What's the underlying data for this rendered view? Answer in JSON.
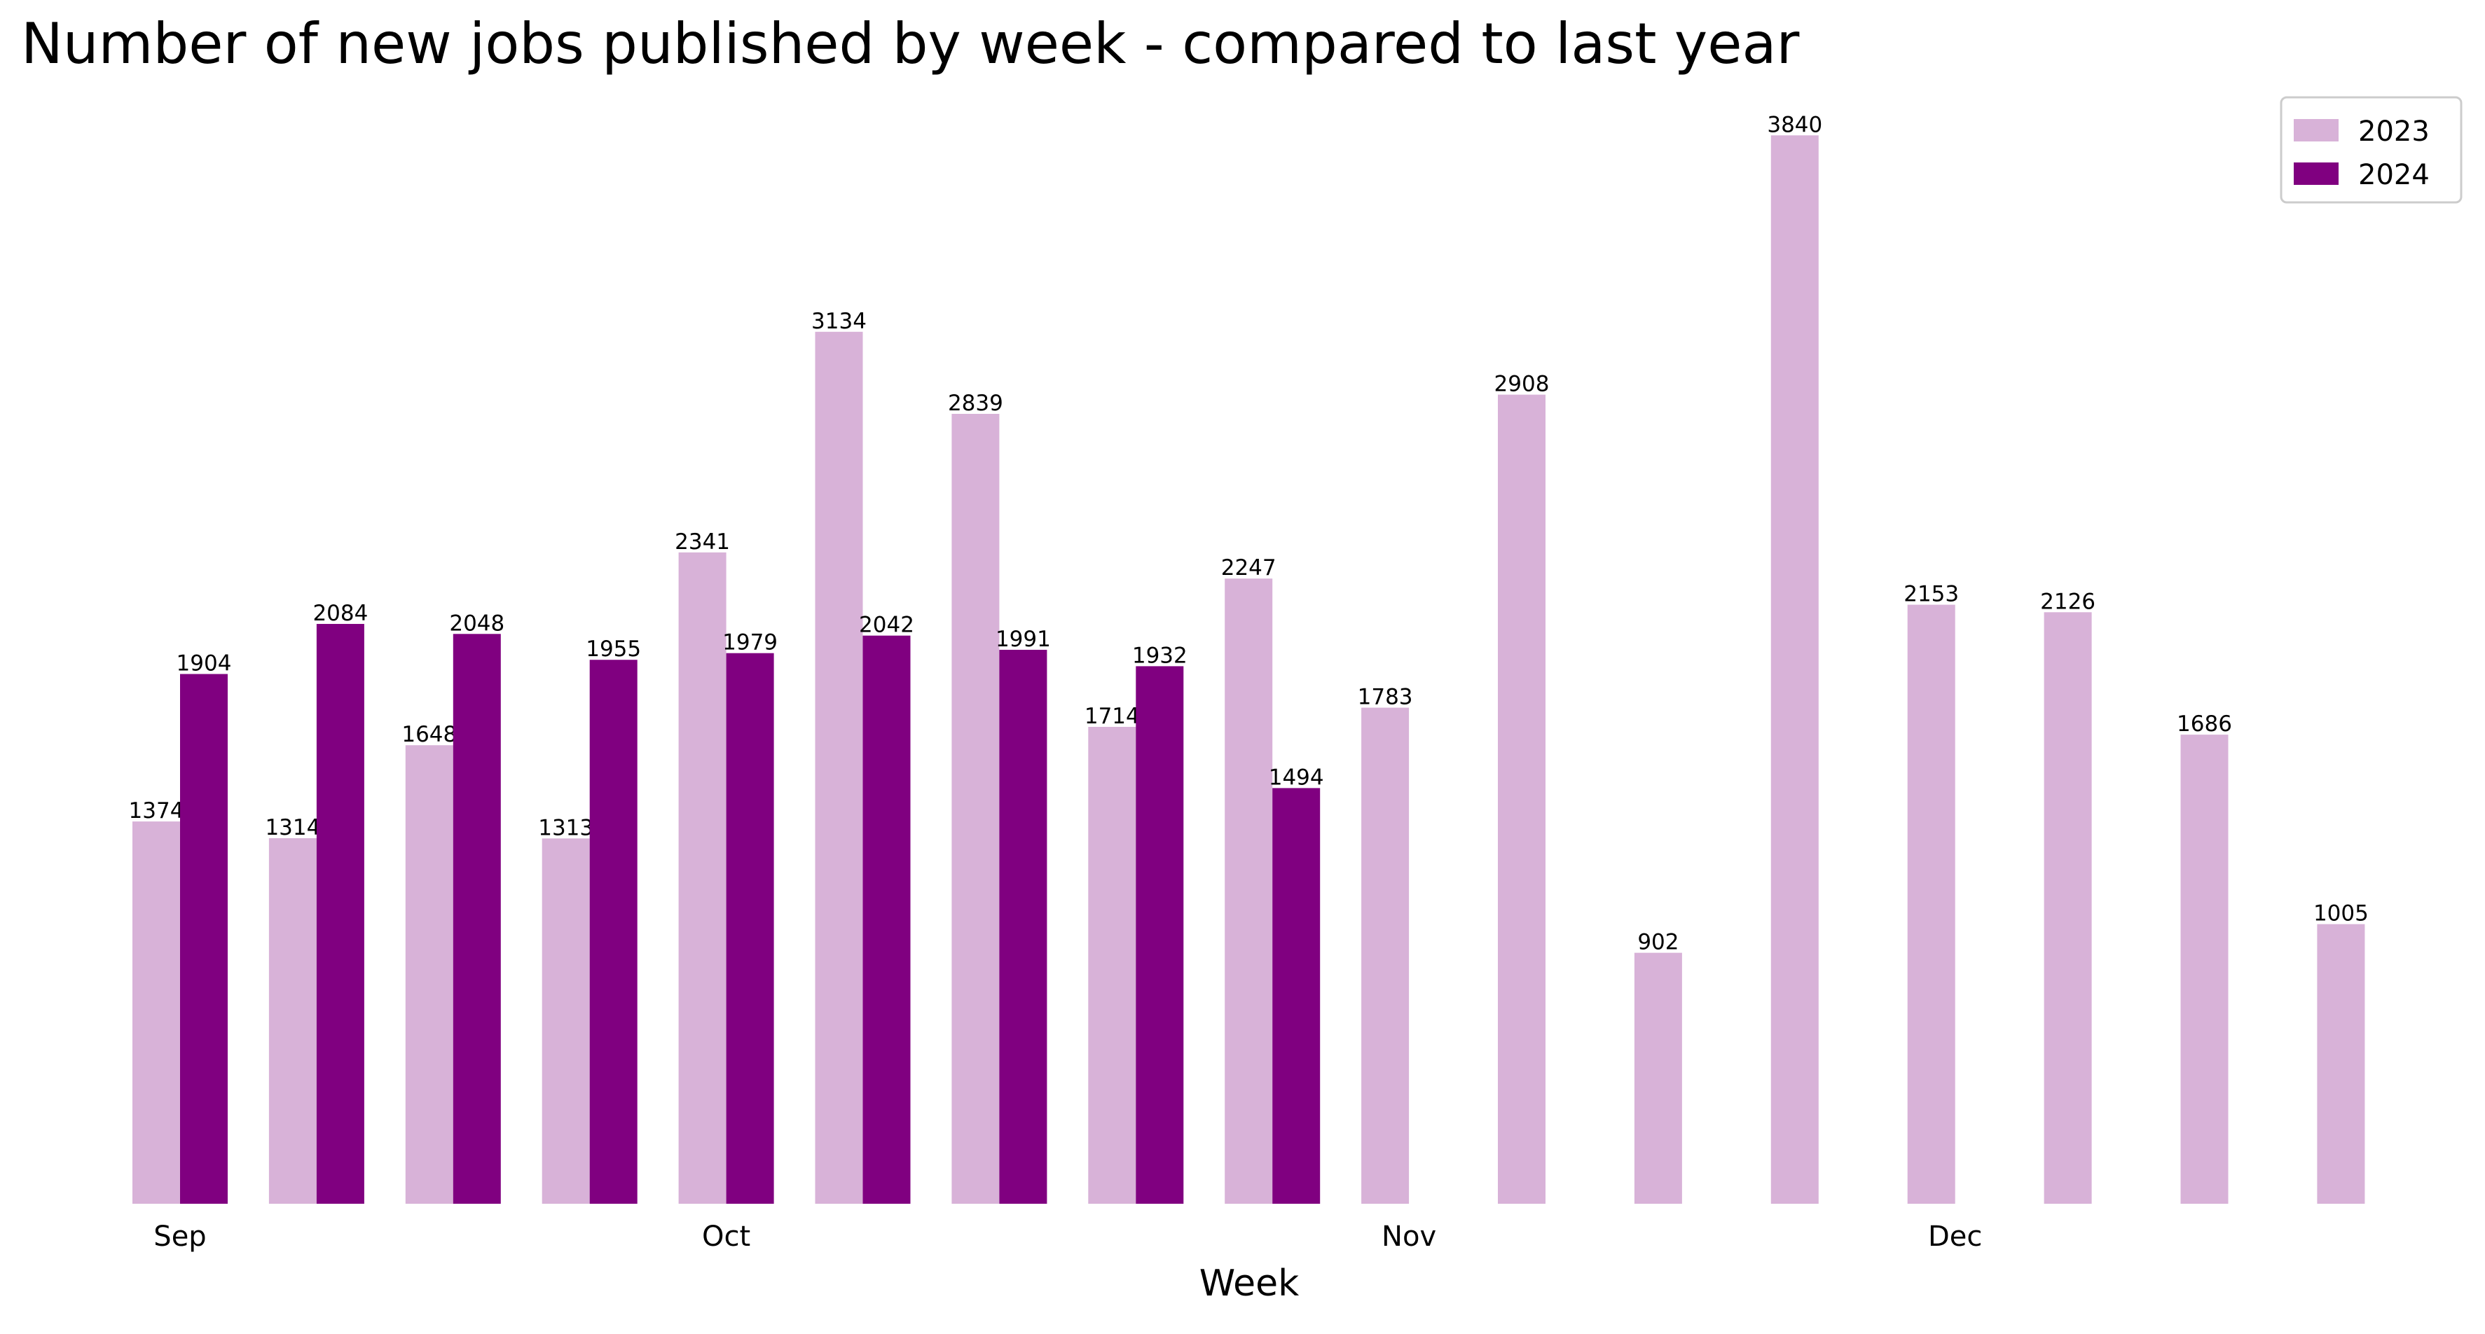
{
  "chart_data": {
    "type": "bar",
    "title": "Number of new jobs published by week - compared to last year",
    "x_label": "Week",
    "categories": [
      "Sep",
      null,
      null,
      null,
      "Oct",
      null,
      null,
      null,
      null,
      "Nov",
      null,
      null,
      null,
      "Dec",
      null,
      null,
      null
    ],
    "series": [
      {
        "name": "2023",
        "color": "#d8b2d8",
        "values": [
          1374,
          1314,
          1648,
          1313,
          2341,
          3134,
          2839,
          1714,
          2247,
          1783,
          2908,
          902,
          3840,
          2153,
          2126,
          1686,
          1005
        ]
      },
      {
        "name": "2024",
        "color": "#800080",
        "values": [
          1904,
          2084,
          2048,
          1955,
          1979,
          2042,
          1991,
          1932,
          1494,
          null,
          null,
          null,
          null,
          null,
          null,
          null,
          null
        ]
      }
    ],
    "ylim": [
      0,
      4032
    ],
    "legend": "upper right",
    "data_labels": true
  }
}
